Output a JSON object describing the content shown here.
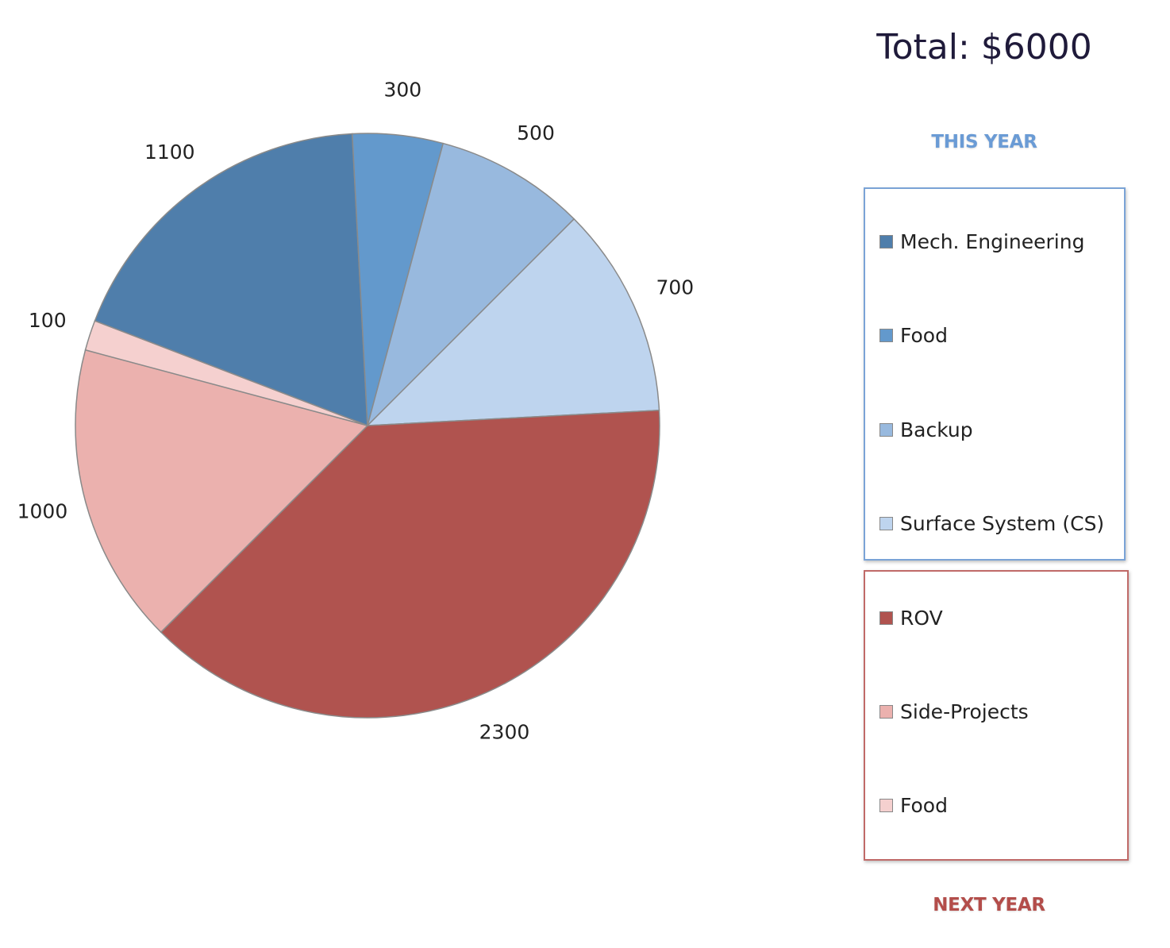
{
  "header": {
    "total_label": "Total: $6000"
  },
  "groups": {
    "this_year_label": "THIS YEAR",
    "next_year_label": "NEXT YEAR"
  },
  "legend": {
    "this_year": [
      {
        "label": "Mech. Engineering",
        "color": "#4f7eab"
      },
      {
        "label": "Food",
        "color": "#6399cc"
      },
      {
        "label": "Backup",
        "color": "#98b9de"
      },
      {
        "label": "Surface System (CS)",
        "color": "#bed4ee"
      }
    ],
    "next_year": [
      {
        "label": "ROV",
        "color": "#b0534f"
      },
      {
        "label": "Side-Projects",
        "color": "#ebb1ae"
      },
      {
        "label": "Food",
        "color": "#f5d0cf"
      }
    ]
  },
  "chart_data": {
    "type": "pie",
    "title": "Total: $6000",
    "categories": [
      "Mech. Engineering",
      "Food",
      "Backup",
      "Surface System (CS)",
      "ROV",
      "Side-Projects",
      "Food"
    ],
    "values": [
      1100,
      300,
      500,
      700,
      2300,
      1000,
      100
    ],
    "data_labels": [
      "1100",
      "300",
      "500",
      "700",
      "2300",
      "1000",
      "100"
    ],
    "colors": [
      "#4f7eab",
      "#6399cc",
      "#98b9de",
      "#bed4ee",
      "#b0534f",
      "#ebb1ae",
      "#f5d0cf"
    ],
    "groups": [
      {
        "name": "THIS YEAR",
        "categories": [
          "Mech. Engineering",
          "Food",
          "Backup",
          "Surface System (CS)"
        ]
      },
      {
        "name": "NEXT YEAR",
        "categories": [
          "ROV",
          "Side-Projects",
          "Food"
        ]
      }
    ],
    "legend_position": "right"
  }
}
